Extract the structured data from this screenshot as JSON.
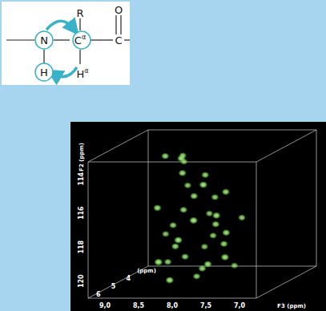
{
  "chart_data": {
    "type": "scatter3d",
    "x_label": "F3 (ppm)",
    "y_label": "F2 (ppm)",
    "z_label": "(ppm)",
    "xlim": [
      9.25,
      6.75
    ],
    "ylim": [
      121,
      113
    ],
    "zlim": [
      7,
      3
    ],
    "xticks": [
      {
        "value": 9,
        "label": "9,0"
      },
      {
        "value": 8.5,
        "label": "8,5"
      },
      {
        "value": 8,
        "label": "8,0"
      },
      {
        "value": 7.5,
        "label": "7,5"
      },
      {
        "value": 7,
        "label": "7,0"
      }
    ],
    "yticks": [
      114,
      116,
      118,
      120
    ],
    "zticks": [
      6,
      5,
      4
    ],
    "color": "#7ddc55",
    "marker": "blob",
    "grid": false,
    "x": [
      8.55,
      8.4,
      8.2,
      8.45,
      8.25,
      8.0,
      7.85,
      8.35,
      8.1,
      7.9,
      8.6,
      8.3,
      7.7,
      8.05,
      7.8,
      8.5,
      7.6,
      8.2,
      7.95,
      7.7,
      8.4,
      8.1,
      7.55,
      8.3,
      7.85,
      8.6,
      8.0,
      7.7,
      8.35,
      8.15,
      7.95,
      8.45,
      7.5,
      8.7,
      7.65
    ],
    "y": [
      113.6,
      113.8,
      113.5,
      114.3,
      114.5,
      114.8,
      115.0,
      115.6,
      115.9,
      116.2,
      116.5,
      116.8,
      116.9,
      117.3,
      117.6,
      117.8,
      118.0,
      118.2,
      118.5,
      118.8,
      118.9,
      119.2,
      119.3,
      119.6,
      119.8,
      120.0,
      120.2,
      120.4,
      120.6,
      120.8,
      117.0,
      119.4,
      117.4,
      118.5,
      115.7
    ],
    "z": [
      5.0,
      4.5,
      5.5,
      4.2,
      5.2,
      4.8,
      5.6,
      4.4,
      5.1,
      4.6,
      5.3,
      4.9,
      5.4,
      4.3,
      5.0,
      4.7,
      5.2,
      5.7,
      4.5,
      4.9,
      5.0,
      4.4,
      5.5,
      4.8,
      5.3,
      4.6,
      5.0,
      4.2,
      5.6,
      4.7,
      5.8,
      5.9,
      4.6,
      4.3,
      5.0
    ]
  },
  "inset": {
    "atoms": [
      {
        "label": "N"
      },
      {
        "label": "C",
        "sup": "α"
      },
      {
        "label": "H"
      },
      {
        "label": "R"
      },
      {
        "label": "C"
      },
      {
        "label": "O"
      },
      {
        "label": "H",
        "sup": "α"
      }
    ]
  }
}
